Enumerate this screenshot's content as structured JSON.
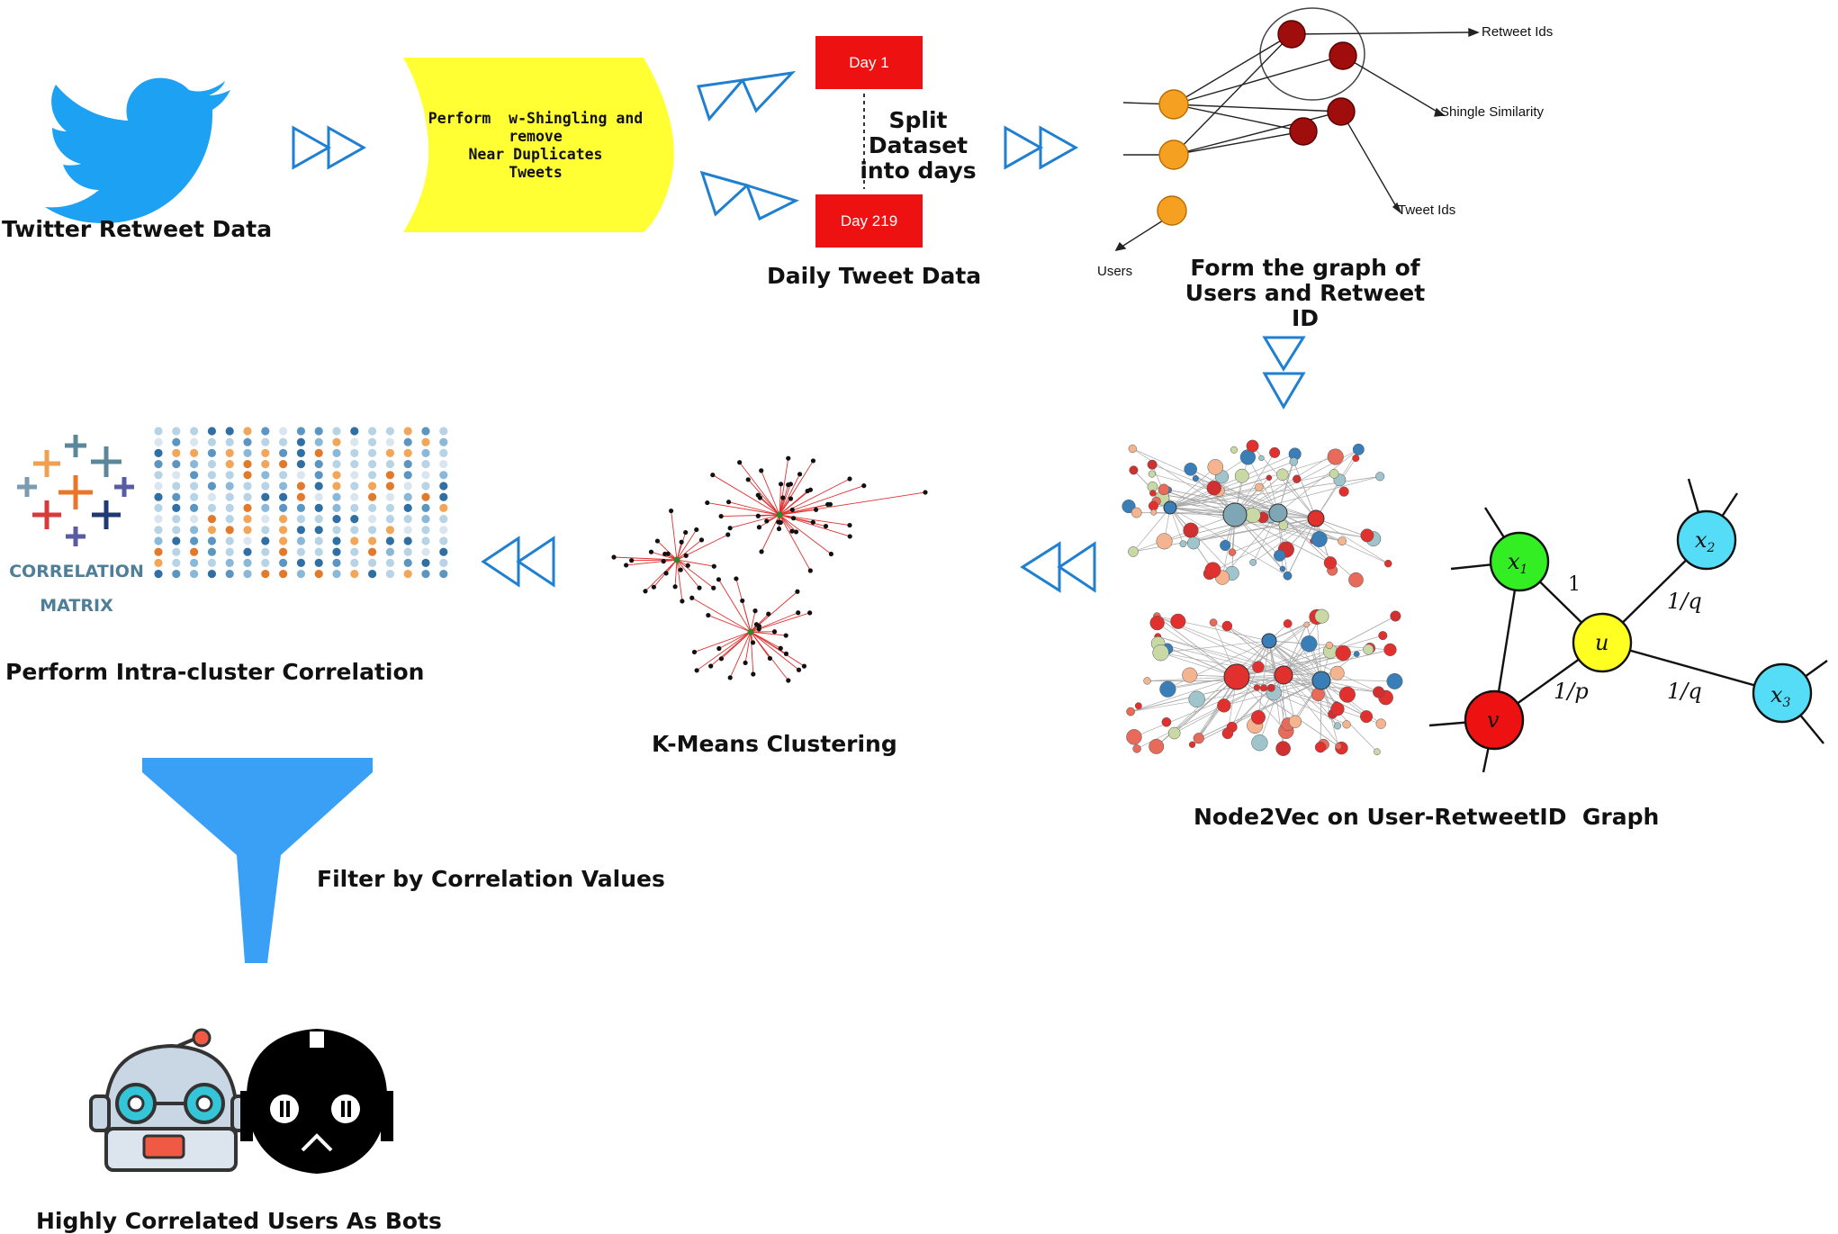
{
  "stages": {
    "twitter_data": "Twitter Retweet Data",
    "shingling_lines": [
      "Perform  w-Shingling and",
      "remove",
      "Near Duplicates",
      "Tweets"
    ],
    "day_first": "Day 1",
    "day_last": "Day 219",
    "split_lines": [
      "Split",
      "Dataset",
      "into days"
    ],
    "daily_tweet": "Daily Tweet Data",
    "graph_title_lines": [
      "Form the graph of",
      "Users and Retweet",
      "ID"
    ],
    "node2vec": "Node2Vec on User-RetweetID  Graph",
    "kmeans": "K-Means Clustering",
    "intra_cluster": "Perform Intra-cluster Correlation",
    "filter": "Filter by Correlation Values",
    "bots": "Highly Correlated Users As Bots"
  },
  "graph_labels": {
    "retweet_ids": "Retweet Ids",
    "shingle_similarity": "Shingle Similarity",
    "tweet_ids": "Tweet Ids",
    "users": "Users"
  },
  "correlation_logo": {
    "line1": "CORRELATION",
    "line2": "MATRIX"
  },
  "node2vec_diagram": {
    "nodes": [
      "x1",
      "x2",
      "u",
      "v",
      "x3"
    ],
    "edge_labels": [
      "1",
      "1/q",
      "1/p",
      "1/q"
    ]
  },
  "colors": {
    "twitter_blue": "#1da1f2",
    "arrow_blue": "#1f7fd1",
    "shingle_yellow": "#ffff33",
    "day_red": "#ee1111",
    "user_orange": "#f5a020",
    "retweet_darkred": "#a00d0d",
    "funnel_blue": "#3aa0f5",
    "node_green": "#33ee22",
    "node_cyan": "#55ddf7",
    "node_yellow": "#ffff22",
    "node_red": "#ee1111"
  }
}
